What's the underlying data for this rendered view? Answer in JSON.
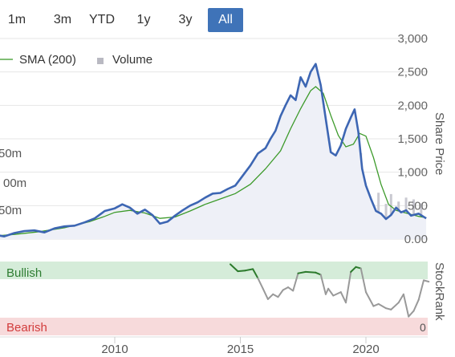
{
  "range_tabs": [
    {
      "label": "1m",
      "active": false
    },
    {
      "label": "3m",
      "active": false
    },
    {
      "label": "YTD",
      "active": false
    },
    {
      "label": "1y",
      "active": false
    },
    {
      "label": "3y",
      "active": false
    },
    {
      "label": "All",
      "active": true
    }
  ],
  "legend": {
    "sma_label": "SMA (200)",
    "volume_label": "Volume"
  },
  "colors": {
    "price": "#3d66b3",
    "sma": "#3c9a2a",
    "volume": "#c9c9d1",
    "area": "#eef0f7",
    "bullish_band": "#d5ecd9",
    "bearish_band": "#f7dadb",
    "bullish_text": "#2e7d32",
    "bearish_text": "#d23c3c",
    "rank_bull": "#2c7a2c",
    "rank_neutral": "#999999",
    "accent": "#3f73b8"
  },
  "chart_data": [
    {
      "type": "line",
      "ylabel": "Share Price",
      "ylim": [
        0,
        3000
      ],
      "y_ticks": [
        "3,000",
        "2,500",
        "2,000",
        "1,500",
        "1,000",
        "500",
        "0.00"
      ],
      "volume_tick_labels": [
        "50m",
        "00m",
        "50m"
      ],
      "x_ticks": [
        "2010",
        "2015",
        "2020"
      ],
      "series": [
        {
          "name": "Price",
          "values": [
            [
              2005.0,
              30
            ],
            [
              2005.3,
              60
            ],
            [
              2005.6,
              40
            ],
            [
              2006.0,
              90
            ],
            [
              2006.4,
              120
            ],
            [
              2006.8,
              130
            ],
            [
              2007.2,
              100
            ],
            [
              2007.6,
              160
            ],
            [
              2008.0,
              190
            ],
            [
              2008.4,
              200
            ],
            [
              2008.8,
              250
            ],
            [
              2009.2,
              310
            ],
            [
              2009.6,
              420
            ],
            [
              2010.0,
              460
            ],
            [
              2010.3,
              520
            ],
            [
              2010.6,
              470
            ],
            [
              2010.9,
              380
            ],
            [
              2011.2,
              440
            ],
            [
              2011.5,
              360
            ],
            [
              2011.8,
              230
            ],
            [
              2012.1,
              260
            ],
            [
              2012.4,
              350
            ],
            [
              2012.7,
              430
            ],
            [
              2013.0,
              500
            ],
            [
              2013.3,
              550
            ],
            [
              2013.6,
              620
            ],
            [
              2013.9,
              680
            ],
            [
              2014.2,
              690
            ],
            [
              2014.5,
              750
            ],
            [
              2014.8,
              800
            ],
            [
              2015.1,
              950
            ],
            [
              2015.4,
              1100
            ],
            [
              2015.7,
              1280
            ],
            [
              2016.0,
              1360
            ],
            [
              2016.2,
              1500
            ],
            [
              2016.4,
              1620
            ],
            [
              2016.6,
              1840
            ],
            [
              2016.8,
              2000
            ],
            [
              2017.0,
              2150
            ],
            [
              2017.2,
              2080
            ],
            [
              2017.4,
              2420
            ],
            [
              2017.6,
              2280
            ],
            [
              2017.8,
              2500
            ],
            [
              2018.0,
              2620
            ],
            [
              2018.2,
              2300
            ],
            [
              2018.4,
              1800
            ],
            [
              2018.6,
              1300
            ],
            [
              2018.8,
              1250
            ],
            [
              2019.0,
              1400
            ],
            [
              2019.2,
              1650
            ],
            [
              2019.4,
              1820
            ],
            [
              2019.55,
              1940
            ],
            [
              2019.7,
              1600
            ],
            [
              2019.85,
              1050
            ],
            [
              2020.0,
              800
            ],
            [
              2020.2,
              600
            ],
            [
              2020.4,
              420
            ],
            [
              2020.6,
              380
            ],
            [
              2020.8,
              300
            ],
            [
              2021.0,
              360
            ],
            [
              2021.2,
              470
            ],
            [
              2021.4,
              400
            ],
            [
              2021.6,
              430
            ],
            [
              2021.8,
              350
            ],
            [
              2022.1,
              380
            ],
            [
              2022.4,
              310
            ]
          ]
        },
        {
          "name": "SMA (200)",
          "values": [
            [
              2005.0,
              40
            ],
            [
              2006.0,
              70
            ],
            [
              2007.0,
              110
            ],
            [
              2008.0,
              170
            ],
            [
              2009.0,
              260
            ],
            [
              2009.6,
              340
            ],
            [
              2010.0,
              400
            ],
            [
              2010.6,
              430
            ],
            [
              2011.2,
              390
            ],
            [
              2011.8,
              310
            ],
            [
              2012.4,
              330
            ],
            [
              2013.0,
              420
            ],
            [
              2013.6,
              520
            ],
            [
              2014.2,
              600
            ],
            [
              2014.8,
              680
            ],
            [
              2015.4,
              820
            ],
            [
              2016.0,
              1050
            ],
            [
              2016.6,
              1320
            ],
            [
              2017.0,
              1650
            ],
            [
              2017.4,
              1950
            ],
            [
              2017.8,
              2220
            ],
            [
              2018.0,
              2280
            ],
            [
              2018.3,
              2180
            ],
            [
              2018.6,
              1850
            ],
            [
              2018.9,
              1550
            ],
            [
              2019.2,
              1380
            ],
            [
              2019.5,
              1420
            ],
            [
              2019.75,
              1580
            ],
            [
              2020.0,
              1540
            ],
            [
              2020.3,
              1220
            ],
            [
              2020.6,
              820
            ],
            [
              2020.9,
              520
            ],
            [
              2021.2,
              430
            ],
            [
              2021.5,
              400
            ],
            [
              2021.8,
              370
            ],
            [
              2022.1,
              340
            ],
            [
              2022.4,
              320
            ]
          ]
        }
      ],
      "volume": [
        [
          2005.0,
          0.5
        ],
        [
          2005.5,
          0.8
        ],
        [
          2006.0,
          1.2
        ],
        [
          2006.5,
          0.9
        ],
        [
          2007.0,
          1.5
        ],
        [
          2007.5,
          2.0
        ],
        [
          2008.0,
          3.0
        ],
        [
          2008.5,
          2.4
        ],
        [
          2009.0,
          2.1
        ],
        [
          2009.5,
          3.1
        ],
        [
          2010.0,
          3.6
        ],
        [
          2010.5,
          2.8
        ],
        [
          2011.0,
          3.2
        ],
        [
          2011.5,
          2.6
        ],
        [
          2012.0,
          2.3
        ],
        [
          2012.5,
          3.0
        ],
        [
          2013.0,
          2.6
        ],
        [
          2013.5,
          3.4
        ],
        [
          2014.0,
          3.9
        ],
        [
          2014.5,
          3.1
        ],
        [
          2015.0,
          3.6
        ],
        [
          2015.5,
          4.3
        ],
        [
          2016.0,
          5.0
        ],
        [
          2016.5,
          5.8
        ],
        [
          2016.8,
          8.5
        ],
        [
          2017.0,
          6.3
        ],
        [
          2017.5,
          9.5
        ],
        [
          2018.0,
          14.5
        ],
        [
          2018.2,
          9.0
        ],
        [
          2018.5,
          17.0
        ],
        [
          2018.9,
          10.0
        ],
        [
          2019.0,
          12.0
        ],
        [
          2019.3,
          8.8
        ],
        [
          2019.6,
          11.5
        ],
        [
          2019.8,
          19.5
        ],
        [
          2020.0,
          12.0
        ],
        [
          2020.2,
          9.0
        ],
        [
          2020.5,
          10.5
        ],
        [
          2020.8,
          8.0
        ],
        [
          2021.0,
          10.2
        ],
        [
          2021.3,
          8.5
        ],
        [
          2021.6,
          9.4
        ],
        [
          2021.9,
          9.0
        ],
        [
          2022.2,
          8.1
        ]
      ]
    },
    {
      "type": "line",
      "ylabel": "StockRank",
      "band_labels": {
        "bullish": "Bullish",
        "bearish": "Bearish"
      },
      "rank_low_label": "0",
      "ylim": [
        0,
        100
      ],
      "series": [
        {
          "values": [
            [
              2014.6,
              95
            ],
            [
              2014.9,
              85
            ],
            [
              2015.2,
              86
            ],
            [
              2015.5,
              88
            ],
            [
              2015.7,
              75
            ],
            [
              2015.9,
              60
            ],
            [
              2016.1,
              45
            ],
            [
              2016.3,
              52
            ],
            [
              2016.5,
              48
            ],
            [
              2016.7,
              58
            ],
            [
              2016.9,
              62
            ],
            [
              2017.1,
              57
            ],
            [
              2017.3,
              82
            ],
            [
              2017.6,
              84
            ],
            [
              2018.0,
              83
            ],
            [
              2018.2,
              80
            ],
            [
              2018.4,
              52
            ],
            [
              2018.5,
              60
            ],
            [
              2018.7,
              50
            ],
            [
              2019.0,
              55
            ],
            [
              2019.2,
              40
            ],
            [
              2019.4,
              84
            ],
            [
              2019.6,
              91
            ],
            [
              2019.8,
              89
            ],
            [
              2020.0,
              55
            ],
            [
              2020.3,
              35
            ],
            [
              2020.5,
              38
            ],
            [
              2020.8,
              32
            ],
            [
              2021.0,
              30
            ],
            [
              2021.3,
              40
            ],
            [
              2021.5,
              52
            ],
            [
              2021.7,
              20
            ],
            [
              2021.9,
              28
            ],
            [
              2022.1,
              44
            ],
            [
              2022.3,
              72
            ],
            [
              2022.5,
              70
            ]
          ]
        }
      ]
    }
  ]
}
